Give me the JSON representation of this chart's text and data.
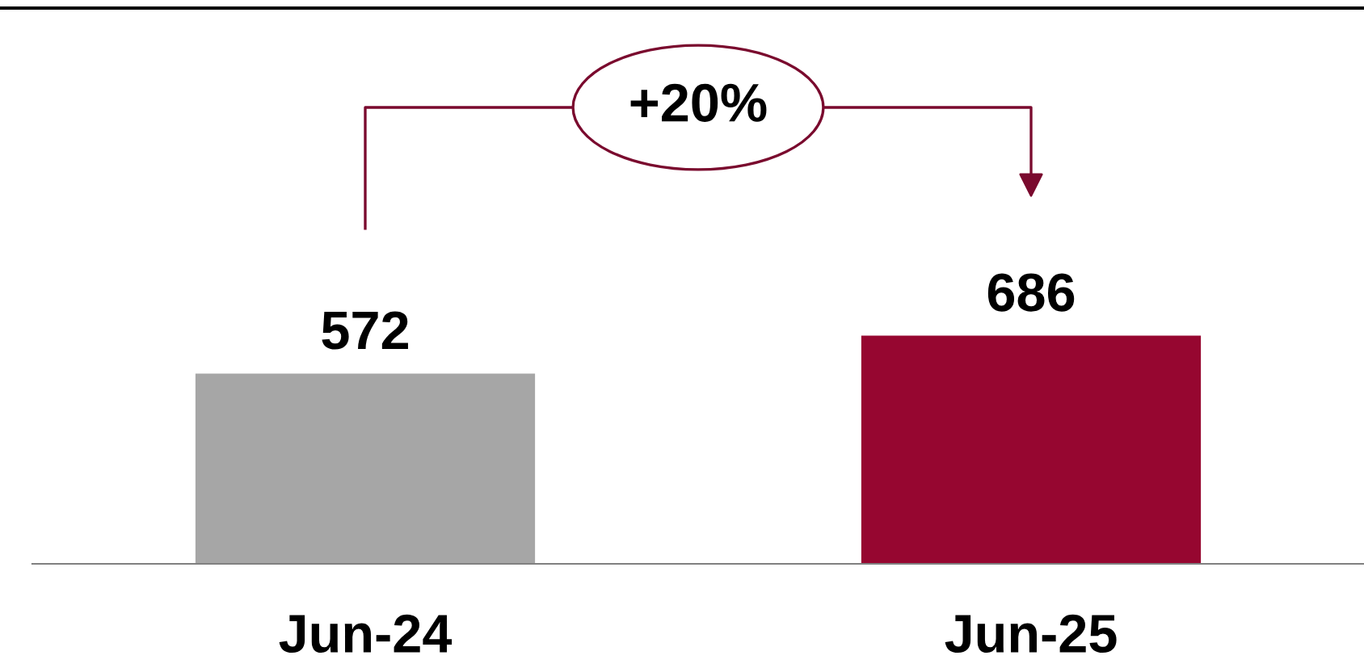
{
  "chart_data": {
    "type": "bar",
    "categories": [
      "Jun-24",
      "Jun-25"
    ],
    "values": [
      572,
      686
    ],
    "colors": [
      "#a6a6a6",
      "#960630"
    ],
    "data_labels": true,
    "annotations": [
      "+20%"
    ]
  }
}
